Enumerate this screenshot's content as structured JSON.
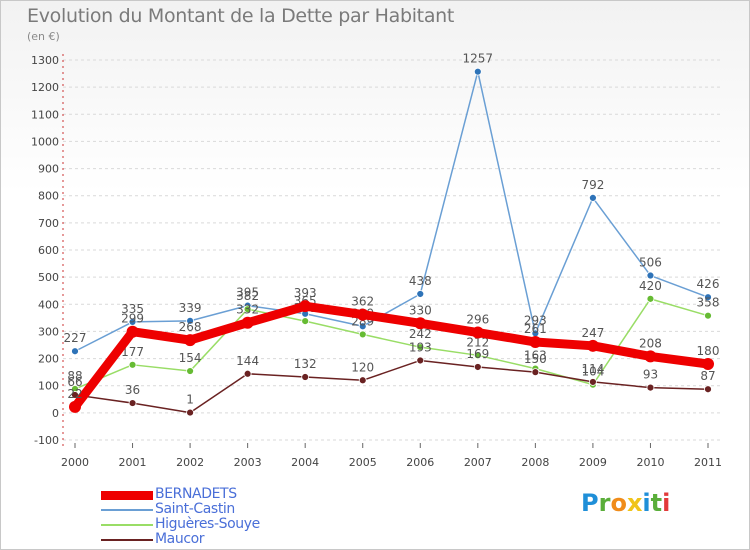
{
  "header": {
    "title": "Evolution du Montant de la Dette par Habitant",
    "unit": "(en €)"
  },
  "logo": {
    "text": "Proxiti",
    "letters": [
      {
        "ch": "P",
        "color": "#1f8fd8"
      },
      {
        "ch": "r",
        "color": "#5aae3a"
      },
      {
        "ch": "o",
        "color": "#f08c1a"
      },
      {
        "ch": "x",
        "color": "#f0c419"
      },
      {
        "ch": "i",
        "color": "#1f8fd8"
      },
      {
        "ch": "t",
        "color": "#5aae3a"
      },
      {
        "ch": "i",
        "color": "#e23a3a"
      }
    ]
  },
  "chart_data": {
    "type": "line",
    "title": "Evolution du Montant de la Dette par Habitant",
    "ylabel": "(en €)",
    "xlabel": "",
    "ylim": [
      -100,
      1300
    ],
    "yticks": [
      -100,
      0,
      100,
      200,
      300,
      400,
      500,
      600,
      700,
      800,
      900,
      1000,
      1100,
      1200,
      1300
    ],
    "grid": true,
    "legend_position": "bottom-left",
    "categories": [
      "2000",
      "2001",
      "2002",
      "2003",
      "2004",
      "2005",
      "2006",
      "2007",
      "2008",
      "2009",
      "2010",
      "2011"
    ],
    "series": [
      {
        "name": "Saint-Castin",
        "color": "#6a9fd4",
        "marker": "#2e73b8",
        "values": [
          227,
          335,
          339,
          395,
          365,
          319,
          438,
          1257,
          293,
          792,
          506,
          426
        ]
      },
      {
        "name": "Higuères-Souye",
        "color": "#99dd66",
        "marker": "#66bb33",
        "values": [
          88,
          177,
          154,
          382,
          338,
          289,
          242,
          212,
          163,
          104,
          420,
          358
        ]
      },
      {
        "name": "Maucor",
        "color": "#6a2222",
        "marker": "#6a2222",
        "values": [
          66,
          36,
          1,
          144,
          132,
          120,
          193,
          169,
          150,
          114,
          93,
          87
        ]
      },
      {
        "name": "BERNADETS",
        "color": "#ee0000",
        "marker": "#ee0000",
        "values": [
          22,
          299,
          268,
          332,
          393,
          362,
          330,
          296,
          261,
          247,
          208,
          180
        ]
      }
    ]
  }
}
